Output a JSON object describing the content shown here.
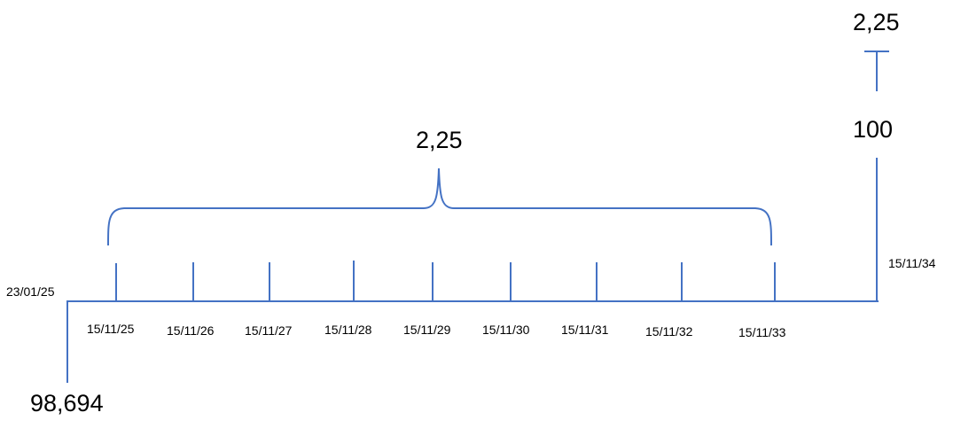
{
  "line_color": "#4472C4",
  "text_color": "#000000",
  "start": {
    "date": "23/01/25",
    "price": "98,694"
  },
  "coupon_dates": [
    "15/11/25",
    "15/11/26",
    "15/11/27",
    "15/11/28",
    "15/11/29",
    "15/11/30",
    "15/11/31",
    "15/11/32",
    "15/11/33"
  ],
  "coupon_amount": "2,25",
  "maturity": {
    "date": "15/11/34",
    "principal": "100",
    "final_coupon": "2,25"
  }
}
